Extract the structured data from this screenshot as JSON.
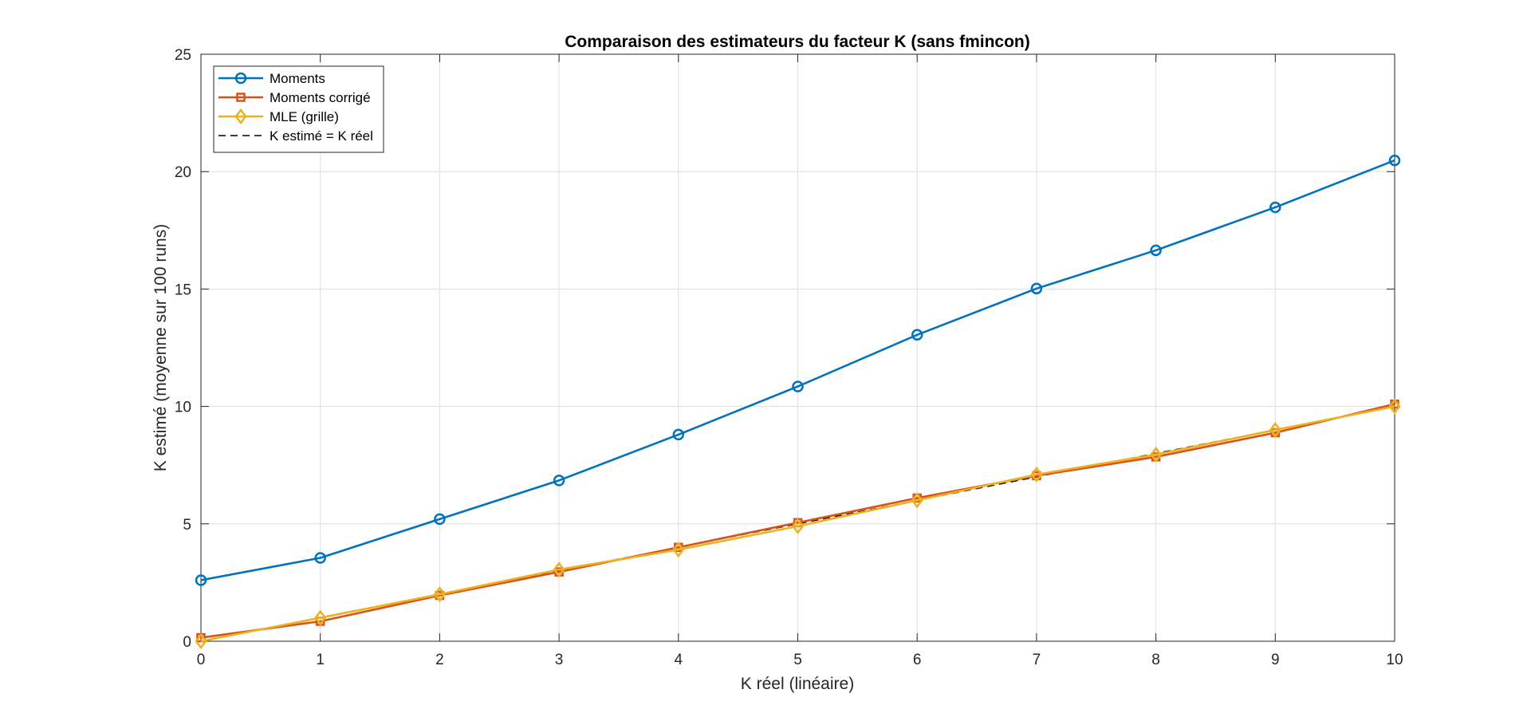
{
  "chart_data": {
    "type": "line",
    "title": "Comparaison des estimateurs du facteur K (sans fmincon)",
    "xlabel": "K réel (linéaire)",
    "ylabel": "K estimé (moyenne sur 100 runs)",
    "xlim": [
      0,
      10
    ],
    "ylim": [
      0,
      25
    ],
    "xticks": [
      "0",
      "1",
      "2",
      "3",
      "4",
      "5",
      "6",
      "7",
      "8",
      "9",
      "10"
    ],
    "yticks": [
      "0",
      "5",
      "10",
      "15",
      "20",
      "25"
    ],
    "grid": true,
    "legend_position": "top-left",
    "x": [
      0,
      1,
      2,
      3,
      4,
      5,
      6,
      7,
      8,
      9,
      10
    ],
    "series": [
      {
        "name": "Moments",
        "marker": "circle",
        "color": "#0072BD",
        "dashed": false,
        "values": [
          2.6,
          3.55,
          5.2,
          6.85,
          8.8,
          10.85,
          13.05,
          15.02,
          16.65,
          18.48,
          20.48
        ]
      },
      {
        "name": "Moments corrigé",
        "marker": "square",
        "color": "#D95319",
        "dashed": false,
        "values": [
          0.15,
          0.85,
          1.95,
          2.95,
          4.0,
          5.05,
          6.1,
          7.05,
          7.85,
          8.88,
          10.1
        ]
      },
      {
        "name": "MLE (grille)",
        "marker": "diamond",
        "color": "#EDB120",
        "dashed": false,
        "values": [
          0.0,
          1.0,
          2.0,
          3.05,
          3.9,
          4.9,
          6.0,
          7.1,
          7.95,
          9.0,
          10.0
        ]
      },
      {
        "name": "K estimé = K réel",
        "marker": "none",
        "color": "#000000",
        "dashed": true,
        "values": [
          0,
          1,
          2,
          3,
          4,
          5,
          6,
          7,
          8,
          9,
          10
        ]
      }
    ]
  }
}
